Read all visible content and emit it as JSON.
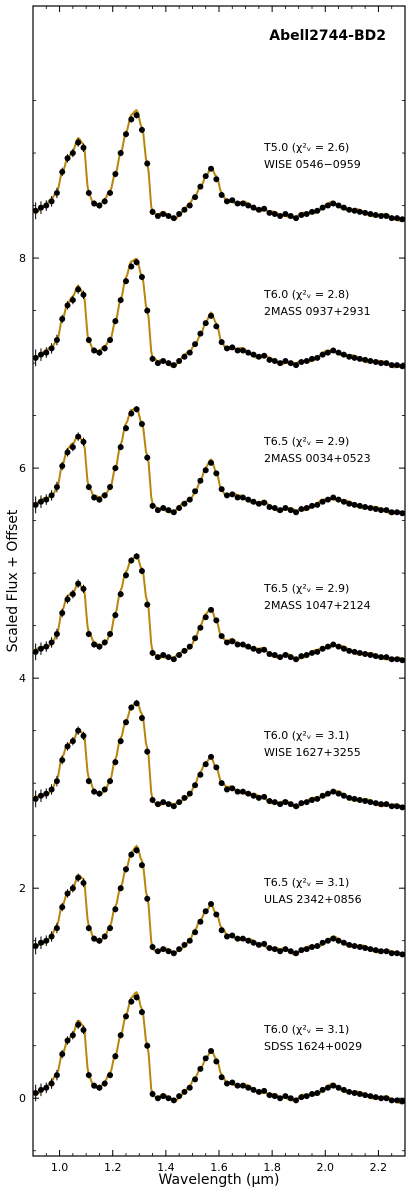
{
  "chart_data": {
    "type": "line",
    "title": "Abell2744-BD2",
    "xlabel": "Wavelength (μm)",
    "ylabel": "Scaled Flux + Offset",
    "xlim": [
      0.9,
      2.3
    ],
    "ylim": [
      -0.55,
      10.4
    ],
    "xticks": [
      1.0,
      1.2,
      1.4,
      1.6,
      1.8,
      2.0,
      2.2
    ],
    "xtick_labels": [
      "1.0",
      "1.2",
      "1.4",
      "1.6",
      "1.8",
      "2.0",
      "2.2"
    ],
    "yticks": [
      0,
      2,
      4,
      6,
      8
    ],
    "ytick_labels": [
      "0",
      "2",
      "4",
      "6",
      "8"
    ],
    "grid": false,
    "model_color": "#b8860b",
    "data_color": "#000000",
    "observed_wavelengths": [
      0.91,
      0.93,
      0.95,
      0.97,
      0.99,
      1.01,
      1.03,
      1.05,
      1.07,
      1.09,
      1.11,
      1.13,
      1.15,
      1.17,
      1.19,
      1.21,
      1.23,
      1.25,
      1.27,
      1.29,
      1.31,
      1.33,
      1.35,
      1.37,
      1.39,
      1.41,
      1.43,
      1.45,
      1.47,
      1.49,
      1.51,
      1.53,
      1.55,
      1.57,
      1.59,
      1.61,
      1.63,
      1.65,
      1.67,
      1.69,
      1.71,
      1.73,
      1.75,
      1.77,
      1.79,
      1.81,
      1.83,
      1.85,
      1.87,
      1.89,
      1.91,
      1.93,
      1.95,
      1.97,
      1.99,
      2.01,
      2.03,
      2.05,
      2.07,
      2.09,
      2.11,
      2.13,
      2.15,
      2.17,
      2.19,
      2.21,
      2.23,
      2.25,
      2.27,
      2.29
    ],
    "observed_shape": [
      0.05,
      0.08,
      0.1,
      0.14,
      0.22,
      0.42,
      0.55,
      0.6,
      0.7,
      0.65,
      0.22,
      0.12,
      0.1,
      0.14,
      0.22,
      0.4,
      0.6,
      0.78,
      0.92,
      0.96,
      0.82,
      0.5,
      0.04,
      0.0,
      0.02,
      0.0,
      -0.02,
      0.02,
      0.06,
      0.1,
      0.18,
      0.28,
      0.38,
      0.45,
      0.35,
      0.2,
      0.14,
      0.15,
      0.12,
      0.12,
      0.1,
      0.08,
      0.06,
      0.07,
      0.03,
      0.02,
      0.0,
      0.02,
      0.0,
      -0.02,
      0.01,
      0.02,
      0.04,
      0.05,
      0.08,
      0.1,
      0.12,
      0.1,
      0.08,
      0.06,
      0.05,
      0.04,
      0.03,
      0.02,
      0.01,
      0.0,
      0.0,
      -0.02,
      -0.02,
      -0.03
    ],
    "observed_error": [
      0.08,
      0.06,
      0.05,
      0.05,
      0.05,
      0.04,
      0.04,
      0.04,
      0.04,
      0.04,
      0.03,
      0.03,
      0.03,
      0.03,
      0.03,
      0.03,
      0.03,
      0.03,
      0.03,
      0.03,
      0.03,
      0.03,
      0.03,
      0.02,
      0.02,
      0.02,
      0.02,
      0.02,
      0.02,
      0.02,
      0.02,
      0.02,
      0.02,
      0.02,
      0.02,
      0.02,
      0.02,
      0.02,
      0.02,
      0.02,
      0.02,
      0.02,
      0.02,
      0.02,
      0.02,
      0.02,
      0.02,
      0.02,
      0.02,
      0.02,
      0.02,
      0.02,
      0.02,
      0.02,
      0.02,
      0.02,
      0.02,
      0.02,
      0.02,
      0.02,
      0.02,
      0.02,
      0.02,
      0.02,
      0.02,
      0.02,
      0.02,
      0.02,
      0.02,
      0.02
    ],
    "series": [
      {
        "name": "T5.0 (χ²ᵥ = 2.6)",
        "label_line1": "T5.0 (χ²ᵥ = 2.6)",
        "label_line2": "WISE 0546−0959",
        "offset": 8.4,
        "scale": 1.0
      },
      {
        "name": "T6.0 (χ²ᵥ = 2.8)",
        "label_line1": "T6.0 (χ²ᵥ = 2.8)",
        "label_line2": "2MASS 0937+2931",
        "offset": 7.0,
        "scale": 1.0
      },
      {
        "name": "T6.5 (χ²ᵥ = 2.9)",
        "label_line1": "T6.5 (χ²ᵥ = 2.9)",
        "label_line2": "2MASS 0034+0523",
        "offset": 5.6,
        "scale": 1.0
      },
      {
        "name": "T6.5 (χ²ᵥ = 2.9)",
        "label_line1": "T6.5 (χ²ᵥ = 2.9)",
        "label_line2": "2MASS 1047+2124",
        "offset": 4.2,
        "scale": 1.0
      },
      {
        "name": "T6.0 (χ²ᵥ = 3.1)",
        "label_line1": "T6.0 (χ²ᵥ = 3.1)",
        "label_line2": "WISE 1627+3255",
        "offset": 2.8,
        "scale": 1.0
      },
      {
        "name": "T6.5 (χ²ᵥ = 3.1)",
        "label_line1": "T6.5 (χ²ᵥ = 3.1)",
        "label_line2": "ULAS 2342+0856",
        "offset": 1.4,
        "scale": 1.0
      },
      {
        "name": "T6.0 (χ²ᵥ = 3.1)",
        "label_line1": "T6.0 (χ²ᵥ = 3.1)",
        "label_line2": "SDSS 1624+0029",
        "offset": 0.0,
        "scale": 1.0
      }
    ]
  }
}
